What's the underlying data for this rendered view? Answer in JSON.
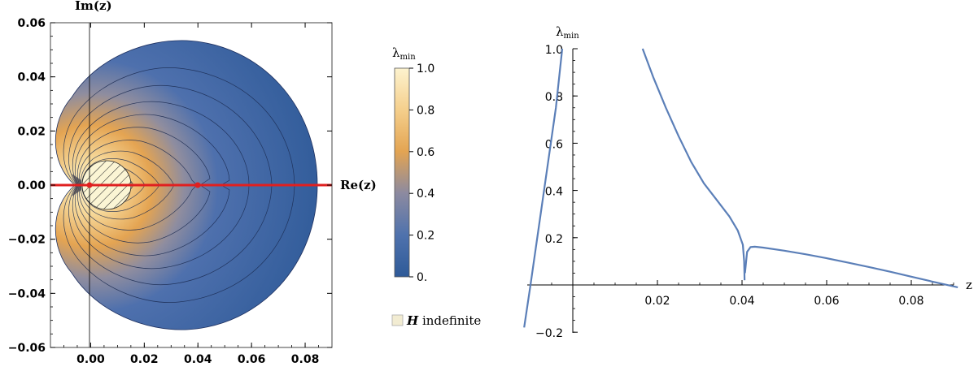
{
  "chart_data": [
    {
      "type": "heatmap",
      "xlabel": "Re(z)",
      "ylabel": "Im(z)",
      "xlim": [
        -0.015,
        0.09
      ],
      "ylim": [
        -0.06,
        0.06
      ],
      "xticks": [
        "0.00",
        "0.02",
        "0.04",
        "0.06",
        "0.08"
      ],
      "xtick_values": [
        0,
        0.02,
        0.04,
        0.06,
        0.08
      ],
      "yticks": [
        "-0.06",
        "-0.04",
        "-0.02",
        "0.00",
        "0.02",
        "0.04",
        "0.06"
      ],
      "ytick_values": [
        -0.06,
        -0.04,
        -0.02,
        0,
        0.02,
        0.04,
        0.06
      ],
      "colorbar": {
        "title": "λ",
        "title_sub": "min",
        "ticks": [
          "0.",
          "0.2",
          "0.4",
          "0.6",
          "0.8",
          "1.0"
        ],
        "tick_values": [
          0,
          0.2,
          0.4,
          0.6,
          0.8,
          1.0
        ],
        "colors": [
          "#2e5a98",
          "#4f72ad",
          "#8c8aa0",
          "#e3a452",
          "#f5cf8c",
          "#fdf3cf"
        ]
      },
      "legend": [
        {
          "symbol": "hatched-box",
          "label_var": "H",
          "label_text": " indefinite"
        }
      ],
      "highlight_line": {
        "color": "#e02020",
        "y": 0,
        "x_from": -0.015,
        "x_to": 0.09
      },
      "hatched_disk": {
        "center": [
          0.006,
          0
        ],
        "radius": 0.0085
      }
    },
    {
      "type": "line",
      "xlabel": "z",
      "ylabel": "λ",
      "ylabel_sub": "min",
      "xlim": [
        -0.017,
        0.091
      ],
      "ylim": [
        -0.22,
        1.0
      ],
      "xticks": [
        "0.02",
        "0.04",
        "0.06",
        "0.08"
      ],
      "xtick_values": [
        0.02,
        0.04,
        0.06,
        0.08
      ],
      "yticks": [
        "-0.2",
        "0.2",
        "0.4",
        "0.6",
        "0.8",
        "1.0"
      ],
      "ytick_values": [
        -0.2,
        0.2,
        0.4,
        0.6,
        0.8,
        1.0
      ],
      "line_color": "#5b7fb8",
      "series": [
        {
          "x": [
            -0.0115,
            -0.01,
            -0.008,
            -0.006,
            -0.004,
            -0.0025
          ],
          "y": [
            -0.18,
            0.0,
            0.25,
            0.5,
            0.75,
            1.0
          ]
        },
        {
          "x": [
            0.0165,
            0.019,
            0.022,
            0.025,
            0.028,
            0.031,
            0.034,
            0.037,
            0.039,
            0.0402,
            0.0405,
            0.0406
          ],
          "y": [
            1.0,
            0.88,
            0.75,
            0.63,
            0.52,
            0.43,
            0.36,
            0.29,
            0.23,
            0.17,
            0.1,
            0.02
          ]
        },
        {
          "x": [
            0.0407,
            0.0412,
            0.042,
            0.043,
            0.045,
            0.05,
            0.055,
            0.06,
            0.065,
            0.07,
            0.075,
            0.08,
            0.085,
            0.091
          ],
          "y": [
            0.05,
            0.14,
            0.16,
            0.162,
            0.158,
            0.145,
            0.13,
            0.113,
            0.095,
            0.076,
            0.056,
            0.035,
            0.014,
            -0.01
          ]
        }
      ]
    }
  ]
}
